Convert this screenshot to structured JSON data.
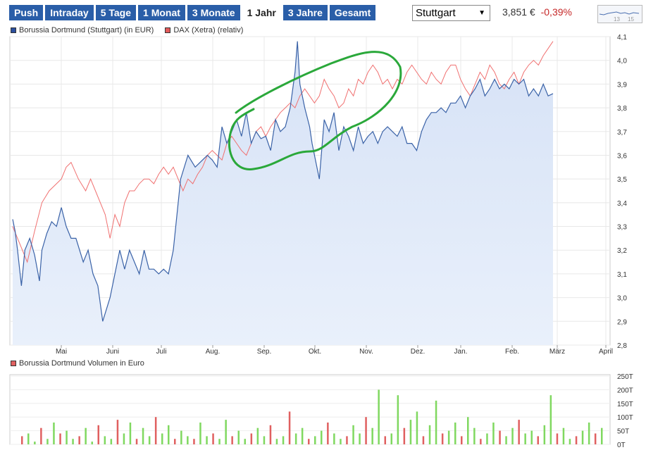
{
  "tabs": [
    {
      "label": "Push",
      "active": false
    },
    {
      "label": "Intraday",
      "active": false
    },
    {
      "label": "5 Tage",
      "active": false
    },
    {
      "label": "1 Monat",
      "active": false
    },
    {
      "label": "3 Monate",
      "active": false
    },
    {
      "label": "1 Jahr",
      "active": true
    },
    {
      "label": "3 Jahre",
      "active": false
    },
    {
      "label": "Gesamt",
      "active": false
    }
  ],
  "exchange": {
    "selected": "Stuttgart"
  },
  "quote": {
    "price": "3,851 €",
    "change": "-0,39%"
  },
  "sparkline": {
    "labels": [
      "13",
      "15"
    ]
  },
  "colors": {
    "stock": "#3a62a7",
    "dax": "#f07070",
    "volume": "#e06060",
    "volume_alt": "#80d860",
    "tab": "#2a5ea8",
    "annotation": "#2aa83a"
  },
  "chart_data": [
    {
      "type": "line",
      "legend": [
        {
          "name": "Borussia Dortmund (Stuttgart) (in EUR)",
          "color": "#2b4f9e"
        },
        {
          "name": "DAX (Xetra) (relativ)",
          "color": "#e35a5a"
        }
      ],
      "legend_position": "top-left",
      "grid": true,
      "ylim": [
        2.8,
        4.1
      ],
      "yticks": [
        "4,1",
        "4,0",
        "3,9",
        "3,8",
        "3,7",
        "3,6",
        "3,5",
        "3,4",
        "3,3",
        "3,2",
        "3,1",
        "3,0",
        "2,9",
        "2,8"
      ],
      "xticks": [
        "Mai",
        "Juni",
        "Juli",
        "Aug.",
        "Sep.",
        "Okt.",
        "Nov.",
        "Dez.",
        "Jan.",
        "Feb.",
        "März",
        "April"
      ],
      "series": [
        {
          "name": "Borussia Dortmund (Stuttgart) (in EUR)",
          "x_months": [
            0,
            0.05,
            0.1,
            0.18,
            0.25,
            0.35,
            0.45,
            0.55,
            0.6,
            0.7,
            0.8,
            0.9,
            1,
            1.1,
            1.2,
            1.3,
            1.45,
            1.55,
            1.65,
            1.75,
            1.85,
            2,
            2.1,
            2.2,
            2.3,
            2.4,
            2.5,
            2.6,
            2.7,
            2.8,
            2.9,
            3,
            3.1,
            3.2,
            3.3,
            3.45,
            3.6,
            3.75,
            3.9,
            4,
            4.1,
            4.2,
            4.3,
            4.4,
            4.5,
            4.6,
            4.7,
            4.8,
            4.9,
            5,
            5.1,
            5.2,
            5.3,
            5.4,
            5.5,
            5.6,
            5.7,
            5.8,
            5.85,
            5.9,
            6,
            6.1,
            6.15,
            6.2,
            6.3,
            6.4,
            6.5,
            6.6,
            6.7,
            6.8,
            6.9,
            7,
            7.1,
            7.2,
            7.3,
            7.4,
            7.5,
            7.6,
            7.7,
            7.8,
            7.9,
            8,
            8.1,
            8.2,
            8.3,
            8.4,
            8.5,
            8.6,
            8.7,
            8.8,
            8.9,
            9,
            9.1,
            9.2,
            9.3,
            9.4,
            9.5,
            9.6,
            9.7,
            9.8,
            9.9,
            10,
            10.1,
            10.2,
            10.3,
            10.4,
            10.5,
            10.6,
            10.7,
            10.8,
            10.9,
            11,
            11.1
          ],
          "values": [
            3.33,
            3.28,
            3.2,
            3.05,
            3.2,
            3.25,
            3.18,
            3.07,
            3.2,
            3.27,
            3.32,
            3.3,
            3.38,
            3.3,
            3.25,
            3.25,
            3.15,
            3.2,
            3.1,
            3.05,
            2.9,
            3.0,
            3.1,
            3.2,
            3.12,
            3.2,
            3.15,
            3.1,
            3.2,
            3.12,
            3.12,
            3.1,
            3.12,
            3.1,
            3.2,
            3.5,
            3.6,
            3.55,
            3.58,
            3.6,
            3.58,
            3.55,
            3.72,
            3.65,
            3.7,
            3.75,
            3.68,
            3.78,
            3.65,
            3.7,
            3.67,
            3.68,
            3.62,
            3.75,
            3.7,
            3.72,
            3.8,
            3.95,
            4.08,
            3.9,
            3.8,
            3.72,
            3.65,
            3.6,
            3.5,
            3.75,
            3.7,
            3.78,
            3.62,
            3.72,
            3.68,
            3.62,
            3.72,
            3.65,
            3.68,
            3.7,
            3.65,
            3.7,
            3.72,
            3.7,
            3.68,
            3.72,
            3.65,
            3.65,
            3.62,
            3.7,
            3.75,
            3.78,
            3.78,
            3.8,
            3.78,
            3.82,
            3.82,
            3.85,
            3.8,
            3.85,
            3.88,
            3.92,
            3.85,
            3.88,
            3.92,
            3.88,
            3.9,
            3.88,
            3.92,
            3.9,
            3.92,
            3.85,
            3.88,
            3.85,
            3.9,
            3.85,
            3.86
          ]
        },
        {
          "name": "DAX (Xetra) (relativ)",
          "x_months": [
            0,
            0.1,
            0.2,
            0.3,
            0.45,
            0.6,
            0.75,
            0.9,
            1,
            1.1,
            1.2,
            1.35,
            1.5,
            1.6,
            1.7,
            1.8,
            1.9,
            2,
            2.1,
            2.2,
            2.3,
            2.4,
            2.5,
            2.6,
            2.7,
            2.8,
            2.9,
            3,
            3.1,
            3.2,
            3.3,
            3.4,
            3.5,
            3.6,
            3.7,
            3.8,
            3.9,
            4,
            4.1,
            4.2,
            4.3,
            4.4,
            4.5,
            4.6,
            4.7,
            4.8,
            4.9,
            5,
            5.1,
            5.2,
            5.3,
            5.4,
            5.5,
            5.6,
            5.7,
            5.8,
            5.9,
            6,
            6.1,
            6.2,
            6.3,
            6.4,
            6.5,
            6.6,
            6.7,
            6.8,
            6.9,
            7,
            7.1,
            7.2,
            7.3,
            7.4,
            7.5,
            7.6,
            7.7,
            7.8,
            7.9,
            8,
            8.1,
            8.2,
            8.3,
            8.4,
            8.5,
            8.6,
            8.7,
            8.8,
            8.9,
            9,
            9.1,
            9.2,
            9.3,
            9.4,
            9.5,
            9.6,
            9.7,
            9.8,
            9.9,
            10,
            10.1,
            10.2,
            10.3,
            10.4,
            10.5,
            10.6,
            10.7,
            10.8,
            10.9,
            11,
            11.1
          ],
          "values": [
            3.3,
            3.25,
            3.2,
            3.15,
            3.28,
            3.4,
            3.45,
            3.48,
            3.5,
            3.55,
            3.57,
            3.5,
            3.45,
            3.5,
            3.45,
            3.4,
            3.35,
            3.25,
            3.35,
            3.3,
            3.4,
            3.45,
            3.45,
            3.48,
            3.5,
            3.5,
            3.48,
            3.52,
            3.55,
            3.52,
            3.55,
            3.5,
            3.45,
            3.5,
            3.48,
            3.52,
            3.55,
            3.6,
            3.62,
            3.6,
            3.58,
            3.65,
            3.68,
            3.65,
            3.62,
            3.6,
            3.65,
            3.7,
            3.72,
            3.68,
            3.72,
            3.75,
            3.78,
            3.8,
            3.82,
            3.8,
            3.85,
            3.88,
            3.85,
            3.82,
            3.85,
            3.92,
            3.88,
            3.85,
            3.8,
            3.82,
            3.88,
            3.85,
            3.92,
            3.9,
            3.95,
            3.98,
            3.95,
            3.9,
            3.92,
            3.88,
            3.92,
            3.9,
            3.95,
            3.98,
            3.95,
            3.92,
            3.9,
            3.95,
            3.92,
            3.9,
            3.95,
            3.98,
            3.98,
            3.92,
            3.88,
            3.85,
            3.9,
            3.95,
            3.92,
            3.98,
            3.95,
            3.9,
            3.88,
            3.92,
            3.95,
            3.9,
            3.95,
            3.98,
            4.0,
            3.98,
            4.02,
            4.05,
            4.08
          ]
        }
      ]
    },
    {
      "type": "bar",
      "legend": [
        {
          "name": "Borussia Dortmund Volumen in Euro",
          "color": "#e06060"
        }
      ],
      "ylim": [
        0,
        250
      ],
      "yticks": [
        "250T",
        "200T",
        "150T",
        "100T",
        "50T",
        "0T"
      ],
      "values": [
        30,
        40,
        10,
        60,
        20,
        80,
        40,
        50,
        20,
        30,
        60,
        10,
        70,
        30,
        20,
        90,
        40,
        80,
        20,
        60,
        30,
        100,
        40,
        70,
        20,
        50,
        30,
        20,
        80,
        30,
        40,
        20,
        90,
        30,
        50,
        20,
        40,
        60,
        30,
        70,
        20,
        30,
        120,
        40,
        60,
        20,
        30,
        50,
        80,
        40,
        20,
        30,
        70,
        40,
        100,
        60,
        200,
        30,
        40,
        180,
        60,
        90,
        120,
        30,
        70,
        160,
        40,
        50,
        80,
        30,
        100,
        60,
        20,
        40,
        80,
        50,
        30,
        60,
        90,
        40,
        50,
        30,
        70,
        180,
        40,
        60,
        20,
        30,
        50,
        80,
        40,
        60
      ]
    }
  ]
}
